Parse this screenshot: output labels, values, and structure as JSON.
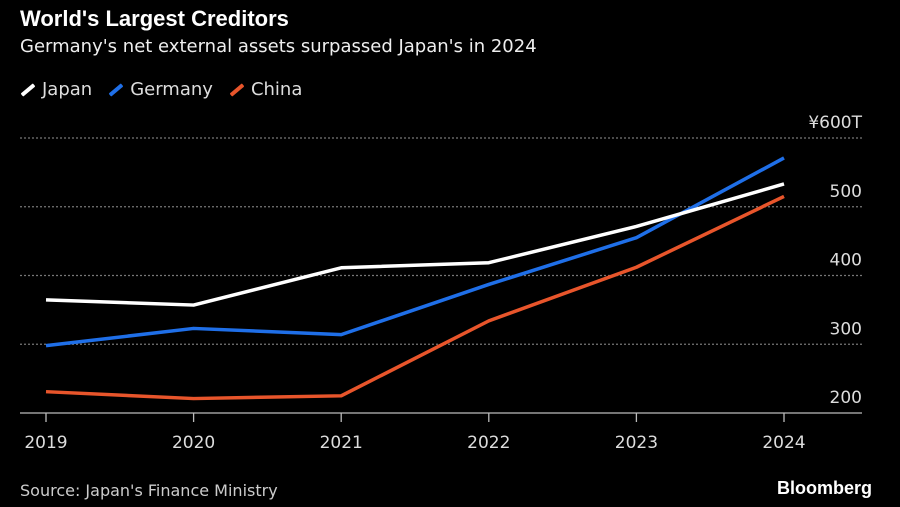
{
  "title": "World's Largest Creditors",
  "subtitle": "Germany's net external assets surpassed Japan's in 2024",
  "source": "Source: Japan's Finance Ministry",
  "brand": "Bloomberg",
  "chart_data": {
    "type": "line",
    "x": [
      "2019",
      "2020",
      "2021",
      "2022",
      "2023",
      "2024"
    ],
    "ylim": [
      200,
      600
    ],
    "yticks": [
      {
        "value": 600,
        "label": "¥600T"
      },
      {
        "value": 500,
        "label": "500"
      },
      {
        "value": 400,
        "label": "400"
      },
      {
        "value": 300,
        "label": "300"
      },
      {
        "value": 200,
        "label": "200"
      }
    ],
    "y_axis_position": "right",
    "grid": true,
    "legend_position": "top-left",
    "series": [
      {
        "name": "Japan",
        "color": "#ffffff",
        "values": [
          364.5,
          357.0,
          411.2,
          418.6,
          471.3,
          533.1
        ]
      },
      {
        "name": "Germany",
        "color": "#1f6fe8",
        "values": [
          298,
          323,
          314,
          387,
          455,
          571
        ]
      },
      {
        "name": "China",
        "color": "#e8552b",
        "values": [
          231,
          221,
          225,
          334,
          412,
          515
        ]
      }
    ]
  }
}
